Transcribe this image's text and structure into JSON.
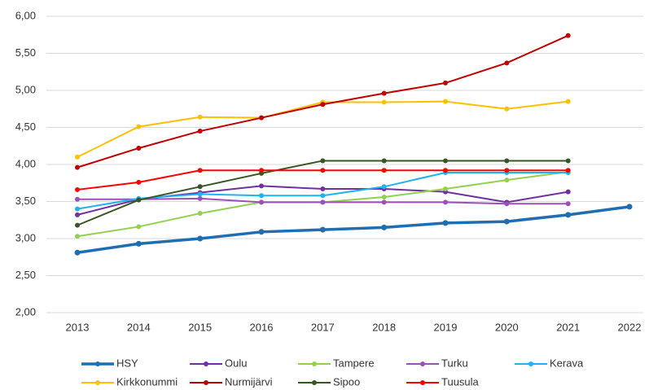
{
  "chart_data": {
    "type": "line",
    "categories": [
      "2013",
      "2014",
      "2015",
      "2016",
      "2017",
      "2018",
      "2019",
      "2020",
      "2021",
      "2022"
    ],
    "ylim": [
      2,
      6
    ],
    "yticks": [
      {
        "value": 2,
        "label": "2,00"
      },
      {
        "value": 2.5,
        "label": "2,50"
      },
      {
        "value": 3,
        "label": "3,00"
      },
      {
        "value": 3.5,
        "label": "3,50"
      },
      {
        "value": 4,
        "label": "4,00"
      },
      {
        "value": 4.5,
        "label": "4,50"
      },
      {
        "value": 5,
        "label": "5,00"
      },
      {
        "value": 5.5,
        "label": "5,50"
      },
      {
        "value": 6,
        "label": "6,00"
      }
    ],
    "grid": true,
    "legend": "bottom",
    "series": [
      {
        "name": "HSY",
        "color": "#1f6eb4",
        "values": [
          2.81,
          2.93,
          3.0,
          3.09,
          3.12,
          3.15,
          3.21,
          3.23,
          3.32,
          3.43
        ]
      },
      {
        "name": "Oulu",
        "color": "#7030a0",
        "values": [
          3.32,
          3.53,
          3.62,
          3.71,
          3.67,
          3.67,
          3.63,
          3.49,
          3.63,
          null
        ]
      },
      {
        "name": "Tampere",
        "color": "#92d050",
        "values": [
          3.03,
          3.16,
          3.34,
          3.49,
          3.49,
          3.56,
          3.67,
          3.79,
          3.9,
          null
        ]
      },
      {
        "name": "Turku",
        "color": "#9b4fb8",
        "values": [
          3.53,
          3.53,
          3.54,
          3.49,
          3.49,
          3.49,
          3.49,
          3.47,
          3.47,
          null
        ]
      },
      {
        "name": "Kerava",
        "color": "#1fb2f0",
        "values": [
          3.4,
          3.54,
          3.6,
          3.58,
          3.58,
          3.7,
          3.89,
          3.89,
          3.89,
          null
        ]
      },
      {
        "name": "Kirkkonummi",
        "color": "#ffc000",
        "values": [
          4.1,
          4.51,
          4.64,
          4.63,
          4.84,
          4.84,
          4.85,
          4.75,
          4.85,
          null
        ]
      },
      {
        "name": "Nurmijärvi",
        "color": "#c00000",
        "values": [
          3.96,
          4.22,
          4.45,
          4.63,
          4.81,
          4.96,
          5.1,
          5.37,
          5.74,
          null
        ]
      },
      {
        "name": "Sipoo",
        "color": "#375623",
        "values": [
          3.18,
          3.52,
          3.7,
          3.88,
          4.05,
          4.05,
          4.05,
          4.05,
          4.05,
          null
        ]
      },
      {
        "name": "Tuusula",
        "color": "#ff0000",
        "values": [
          3.66,
          3.76,
          3.92,
          3.92,
          3.92,
          3.92,
          3.92,
          3.92,
          3.92,
          null
        ]
      }
    ]
  }
}
